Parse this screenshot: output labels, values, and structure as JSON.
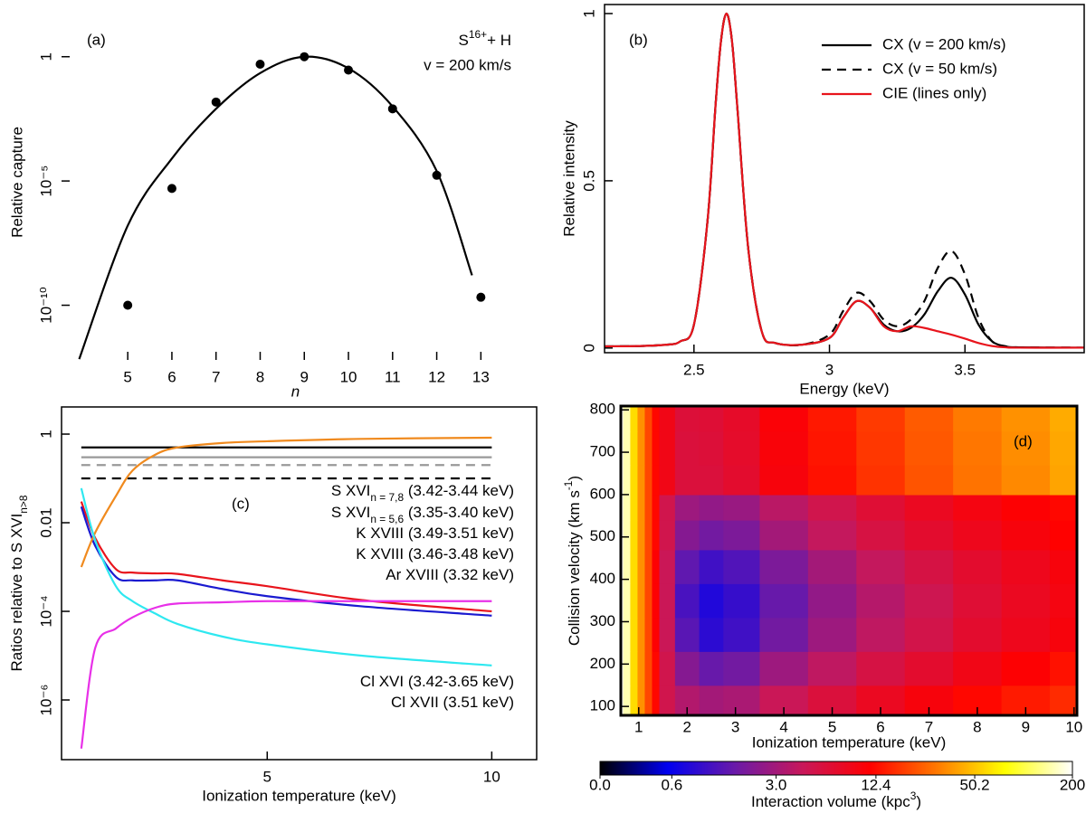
{
  "chart_data": [
    {
      "type": "scatter",
      "panel_label": "(a)",
      "annotations": [
        "S",
        "16+",
        "+ H",
        "v = 200 km/s"
      ],
      "x_label": "n",
      "y_label": "Relative capture",
      "log_y": true,
      "xlim": [
        3.5,
        14.1
      ],
      "ylim": [
        6.3e-13,
        126
      ],
      "xticks": [
        5,
        6,
        7,
        8,
        9,
        10,
        11,
        12,
        13
      ],
      "yticks": [
        {
          "value": 1e-10,
          "label": "10⁻¹⁰"
        },
        {
          "value": 1e-05,
          "label": "10⁻⁵"
        },
        1
      ],
      "series": [
        {
          "mode": "markers",
          "color": "#000000",
          "x": [
            5,
            6,
            7,
            8,
            9,
            10,
            11,
            12,
            13
          ],
          "values": [
            1e-10,
            5e-06,
            0.015,
            0.5,
            1,
            0.29,
            0.008,
            1.7e-05,
            2.1e-10
          ]
        },
        {
          "mode": "line",
          "color": "#000000",
          "x": [
            3.9,
            5,
            6,
            7,
            8,
            9,
            10,
            11,
            12,
            12.8
          ],
          "values": [
            6.8e-13,
            1.6e-07,
            8e-05,
            0.008,
            0.22,
            1,
            0.34,
            0.01,
            2.5e-05,
            1.6e-09
          ]
        }
      ]
    },
    {
      "type": "line",
      "panel_label": "(b)",
      "x_label": "Energy (keV)",
      "y_label": "Relative intensity",
      "xlim": [
        2.17,
        3.94
      ],
      "ylim": [
        -0.014,
        1.027
      ],
      "xticks": [
        2.5,
        3,
        3.5
      ],
      "yticks": [
        0,
        0.5,
        1
      ],
      "legend": "upper right",
      "x": [
        2.17,
        2.3,
        2.4,
        2.45,
        2.5,
        2.55,
        2.58,
        2.6,
        2.62,
        2.64,
        2.66,
        2.7,
        2.75,
        2.8,
        2.9,
        3.0,
        3.05,
        3.1,
        3.15,
        3.2,
        3.25,
        3.3,
        3.35,
        3.4,
        3.45,
        3.5,
        3.55,
        3.6,
        3.65,
        3.7,
        3.94
      ],
      "series": [
        {
          "name": "CX (v = 200 km/s)",
          "color": "#000000",
          "dash": false,
          "values": [
            0.005,
            0.006,
            0.01,
            0.02,
            0.07,
            0.38,
            0.73,
            0.92,
            1,
            0.92,
            0.72,
            0.3,
            0.05,
            0.015,
            0.01,
            0.03,
            0.09,
            0.14,
            0.12,
            0.07,
            0.05,
            0.06,
            0.1,
            0.17,
            0.21,
            0.16,
            0.07,
            0.02,
            0.005,
            0.002,
            0.001
          ]
        },
        {
          "name": "CX (v = 50 km/s)",
          "color": "#000000",
          "dash": true,
          "values": [
            0.005,
            0.006,
            0.01,
            0.02,
            0.07,
            0.38,
            0.73,
            0.92,
            1,
            0.92,
            0.72,
            0.3,
            0.05,
            0.015,
            0.01,
            0.04,
            0.11,
            0.165,
            0.14,
            0.085,
            0.065,
            0.085,
            0.14,
            0.24,
            0.29,
            0.22,
            0.09,
            0.02,
            0.005,
            0.002,
            0.001
          ]
        },
        {
          "name": "CIE (lines only)",
          "color": "#e8141c",
          "dash": false,
          "values": [
            0.005,
            0.006,
            0.01,
            0.02,
            0.07,
            0.38,
            0.73,
            0.92,
            1,
            0.92,
            0.72,
            0.3,
            0.05,
            0.015,
            0.01,
            0.03,
            0.09,
            0.14,
            0.12,
            0.065,
            0.05,
            0.065,
            0.06,
            0.05,
            0.04,
            0.028,
            0.015,
            0.006,
            0.002,
            0.001,
            0.001
          ]
        }
      ]
    },
    {
      "type": "line",
      "panel_label": "(c)",
      "x_label": "Ionization temperature (keV)",
      "y_label": [
        "Ratios relative to S XVI",
        "n>8"
      ],
      "log_y": true,
      "xlim": [
        0.42,
        11
      ],
      "ylim": [
        4.5e-08,
        4.1
      ],
      "xticks": [
        5,
        10
      ],
      "yticks": [
        {
          "value": 1e-06,
          "label": "10⁻⁶"
        },
        {
          "value": 0.0001,
          "label": "10⁻⁴"
        },
        0.01,
        1
      ],
      "series": [
        {
          "name": "S XVI",
          "name_sub": "n = 7,8",
          "name_suffix": " (3.42-3.44 keV)",
          "color": "#000000",
          "dash": false,
          "x": [
            0.86,
            10
          ],
          "values": [
            0.5,
            0.5
          ]
        },
        {
          "color": "#000000",
          "dash": true,
          "x": [
            0.86,
            10
          ],
          "values": [
            0.1,
            0.1
          ]
        },
        {
          "name": "S XVI",
          "name_sub": "n = 5,6",
          "name_suffix": " (3.35-3.40 keV)",
          "color": "#999999",
          "dash": false,
          "x": [
            0.86,
            10
          ],
          "values": [
            0.3,
            0.3
          ]
        },
        {
          "color": "#999999",
          "dash": true,
          "x": [
            0.86,
            10
          ],
          "values": [
            0.2,
            0.2
          ]
        },
        {
          "name": "K XVIII (3.49-3.51 keV)",
          "color": "#e8141c",
          "dash": false,
          "x": [
            0.86,
            1.17,
            1.63,
            2,
            2.5,
            3,
            4,
            5,
            7.1,
            10
          ],
          "values": [
            0.03,
            0.0045,
            0.0009,
            0.00075,
            0.00072,
            0.0007,
            0.0005,
            0.00037,
            0.00018,
            0.0001
          ]
        },
        {
          "name": "K XVIII (3.46-3.48 keV)",
          "color": "#1a1ad0",
          "dash": false,
          "x": [
            0.86,
            1.17,
            1.63,
            2,
            2.5,
            3,
            4,
            5,
            7.1,
            10
          ],
          "values": [
            0.023,
            0.003,
            0.0006,
            0.0005,
            0.0005,
            0.0005,
            0.00032,
            0.00022,
            0.00013,
            8e-05
          ]
        },
        {
          "name": "Ar XVIII (3.32 keV)",
          "color": "#f08a1e",
          "dash": false,
          "x": [
            0.86,
            1.17,
            1.63,
            2,
            2.5,
            3,
            4,
            5,
            7.1,
            10
          ],
          "values": [
            0.001,
            0.006,
            0.04,
            0.15,
            0.34,
            0.5,
            0.63,
            0.69,
            0.78,
            0.83
          ]
        },
        {
          "name": "Cl XVI (3.42-3.65 keV)",
          "color": "#2ee8f0",
          "dash": false,
          "x": [
            0.86,
            1.17,
            1.63,
            2,
            2.5,
            3,
            4,
            5,
            7.1,
            10
          ],
          "values": [
            0.06,
            0.004,
            0.00037,
            0.00017,
            9e-05,
            5.2e-05,
            2.7e-05,
            1.8e-05,
            1e-05,
            6e-06
          ]
        },
        {
          "name": "Cl XVII (3.51 keV)",
          "color": "#e830e8",
          "dash": false,
          "x": [
            0.86,
            1.17,
            1.63,
            2,
            2.5,
            3,
            4,
            5,
            7.1,
            10
          ],
          "values": [
            8e-08,
            1.5e-05,
            4.1e-05,
            7.3e-05,
            0.00012,
            0.00015,
            0.00016,
            0.00017,
            0.00017,
            0.00017
          ]
        }
      ]
    },
    {
      "type": "heatmap",
      "panel_label": "(d)",
      "x_label": "Ionization temperature (keV)",
      "y_label": [
        "Collision velocity (km s",
        "-1",
        ")"
      ],
      "xlim": [
        0.63,
        10.06
      ],
      "ylim": [
        79,
        809
      ],
      "xticks": [
        1,
        2,
        3,
        4,
        5,
        6,
        7,
        8,
        9,
        10
      ],
      "yticks": [
        100,
        200,
        300,
        400,
        500,
        600,
        700,
        800
      ],
      "zscale": "asinh",
      "colormap": [
        "#000000",
        "#0000f0",
        "#6a1aa8",
        "#c8185a",
        "#ff0000",
        "#ff7a00",
        "#ffff00",
        "#ffffff"
      ],
      "colorbar": {
        "label": [
          "Interaction volume (kpc",
          "3",
          ")"
        ],
        "ticks": [
          {
            "value": 0,
            "label": "0.0"
          },
          0.6,
          {
            "value": 3,
            "label": "3.0"
          },
          12.4,
          50.2,
          200
        ]
      },
      "x": [
        0.75,
        0.9,
        1.05,
        1.2,
        1.35,
        1.5,
        2,
        2.5,
        3,
        4,
        5,
        6,
        7,
        8,
        9,
        10
      ],
      "y": [
        110,
        190,
        270,
        350,
        430,
        510,
        570,
        630,
        710,
        790
      ],
      "z": [
        [
          150,
          60,
          35,
          20,
          12,
          5,
          3.5,
          3.0,
          3.2,
          4.5,
          6,
          8,
          10,
          12,
          14,
          16
        ],
        [
          150,
          60,
          35,
          20,
          12,
          5,
          2.2,
          1.6,
          1.8,
          2.8,
          4,
          5.5,
          7,
          9,
          11,
          13
        ],
        [
          150,
          60,
          35,
          20,
          11,
          4.5,
          1.4,
          0.9,
          1.1,
          1.8,
          2.8,
          4,
          5.2,
          7,
          8.5,
          10
        ],
        [
          150,
          60,
          35,
          20,
          11,
          4.5,
          1.2,
          0.8,
          1.0,
          1.6,
          2.5,
          3.6,
          4.8,
          6.5,
          8,
          9.5
        ],
        [
          150,
          60,
          35,
          20,
          11,
          4.5,
          1.5,
          1.1,
          1.3,
          2.0,
          3.0,
          4.2,
          5.5,
          7,
          8.5,
          10
        ],
        [
          150,
          60,
          35,
          20,
          12,
          5,
          2.2,
          1.8,
          2.0,
          3.0,
          4.2,
          5.6,
          7,
          8.5,
          10,
          11.5
        ],
        [
          150,
          60,
          35,
          20,
          12,
          5,
          2.8,
          2.5,
          2.7,
          3.8,
          5,
          6.5,
          8,
          9.5,
          11,
          12
        ],
        [
          150,
          60,
          35,
          20,
          12,
          9,
          6,
          6,
          7,
          10,
          13,
          17,
          22,
          28,
          33,
          40
        ],
        [
          150,
          60,
          35,
          20,
          12,
          9,
          6,
          6.2,
          7.2,
          10.3,
          13.4,
          17.5,
          22.7,
          28.8,
          34,
          41
        ],
        [
          150,
          60,
          35,
          20,
          12,
          9,
          6.2,
          6.4,
          7.4,
          10.6,
          13.8,
          18,
          23.3,
          29.7,
          35,
          42
        ]
      ]
    }
  ]
}
